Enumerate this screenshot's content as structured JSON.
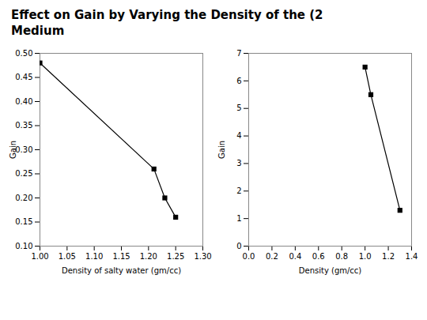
{
  "title": "Effect on Gain by Varying the Density of the (2",
  "subtitle": "Medium",
  "chart_data": [
    {
      "type": "line",
      "x": [
        1.0,
        1.21,
        1.23,
        1.25
      ],
      "series": [
        {
          "color": "#000000",
          "marker": "square",
          "line_style": "solid",
          "values": [
            0.48,
            0.26,
            0.2,
            0.16
          ]
        }
      ],
      "x_label": "Density of salty water (gm/cc)",
      "y_label": "Gain",
      "xlim": [
        1.0,
        1.3
      ],
      "ylim": [
        0.1,
        0.5
      ],
      "xticks": [
        {
          "value": 1.0,
          "label": "1.00"
        },
        1.05,
        {
          "value": 1.1,
          "label": "1.10"
        },
        1.15,
        {
          "value": 1.2,
          "label": "1.20"
        },
        1.25,
        {
          "value": 1.3,
          "label": "1.30"
        }
      ],
      "yticks": [
        {
          "value": 0.1,
          "label": "0.10"
        },
        0.15,
        {
          "value": 0.2,
          "label": "0.20"
        },
        0.25,
        {
          "value": 0.3,
          "label": "0.30"
        },
        0.35,
        {
          "value": 0.4,
          "label": "0.40"
        },
        0.45,
        {
          "value": 0.5,
          "label": "0.50"
        }
      ]
    },
    {
      "type": "line",
      "x": [
        1.0,
        1.05,
        1.3
      ],
      "series": [
        {
          "color": "#000000",
          "marker": "square",
          "line_style": "solid",
          "values": [
            6.5,
            5.5,
            1.3
          ]
        }
      ],
      "x_label": "Density (gm/cc)",
      "y_label": "Gain",
      "xlim": [
        0.0,
        1.4
      ],
      "ylim": [
        0,
        7
      ],
      "xticks": [
        {
          "value": 0.0,
          "label": "0.0"
        },
        0.2,
        0.4,
        0.6,
        0.8,
        {
          "value": 1.0,
          "label": "1.0"
        },
        1.2,
        1.4
      ],
      "yticks": [
        0,
        1,
        2,
        3,
        4,
        5,
        6,
        7
      ]
    }
  ]
}
